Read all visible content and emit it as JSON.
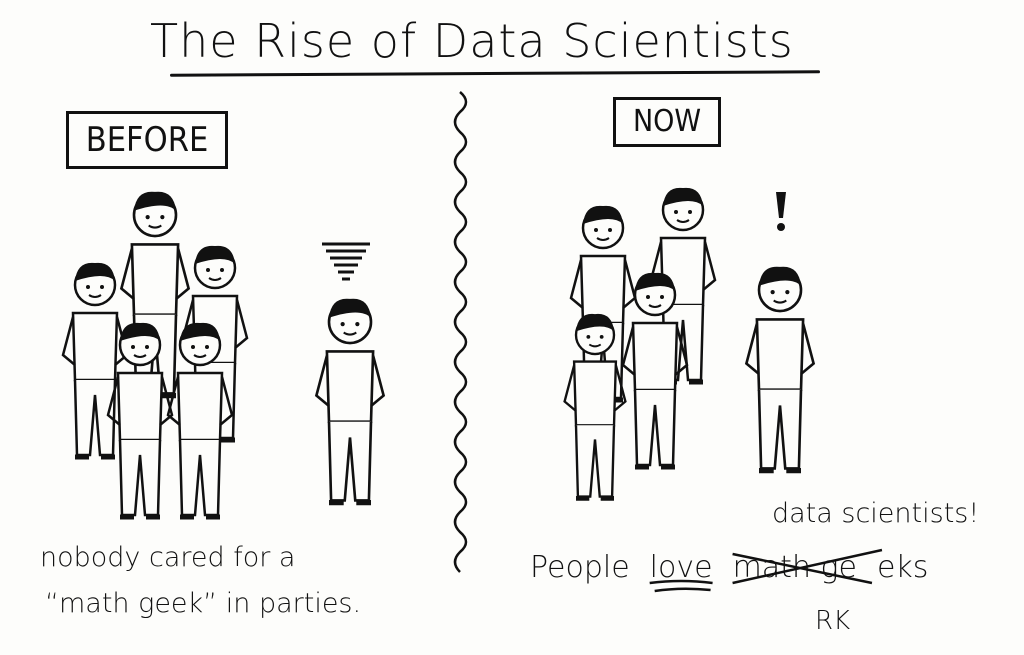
{
  "title": "The Rise of Data Scientists",
  "before": {
    "label": "BEFORE",
    "caption_line1": "nobody cared for a",
    "caption_line2": "“math geek” in parties."
  },
  "now": {
    "label": "NOW",
    "caption_prefix": "People",
    "caption_emphasis": "love",
    "caption_struck": "math ge",
    "caption_suffix": "eks",
    "correction": "data scientists!"
  },
  "signature": "RK",
  "icons": {
    "before_reaction": "storm-cloud-icon",
    "now_reaction": "exclamation-icon"
  },
  "colors": {
    "ink": "#111111",
    "paper": "#fdfdfb"
  }
}
